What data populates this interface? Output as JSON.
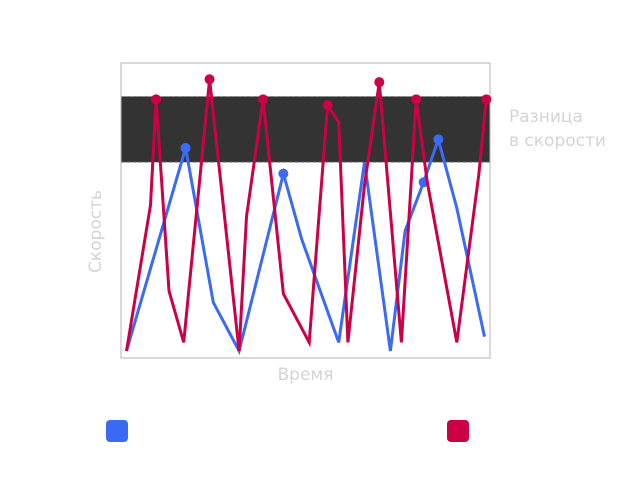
{
  "chart_data": {
    "type": "line",
    "title": "",
    "xlabel": "Время",
    "ylabel": "Скорость",
    "xlim": [
      0,
      100
    ],
    "ylim": [
      0,
      100
    ],
    "grid": false,
    "band": {
      "label_lines": [
        "Разница",
        "в скорости"
      ],
      "y_from": 66,
      "y_to": 89,
      "color": "#333333"
    },
    "series": [
      {
        "color": "#3b6bf5",
        "x": [
          1.5,
          17.5,
          25,
          32,
          44,
          49,
          59,
          66,
          73,
          77,
          82,
          86,
          91,
          98.5
        ],
        "y": [
          0,
          71,
          17,
          0,
          62,
          39,
          3,
          66,
          0,
          42,
          59,
          74,
          50,
          5
        ],
        "markers": [
          1,
          4,
          10,
          11
        ]
      },
      {
        "color": "#cc0044",
        "x": [
          1.5,
          8,
          9.5,
          13,
          17,
          24,
          32,
          34,
          38.5,
          44,
          51,
          56,
          59,
          61.5,
          66,
          70,
          76,
          80,
          83,
          91,
          97,
          99
        ],
        "y": [
          0,
          51,
          88,
          21,
          3,
          95,
          0,
          47,
          88,
          20,
          3,
          86,
          80,
          3,
          58,
          94,
          3,
          88,
          59,
          3,
          62,
          88
        ],
        "markers": [
          2,
          5,
          8,
          11,
          15,
          17,
          21
        ]
      }
    ]
  },
  "legend": {
    "items": [
      {
        "color": "#3b6bf5"
      },
      {
        "color": "#cc0044"
      }
    ]
  }
}
